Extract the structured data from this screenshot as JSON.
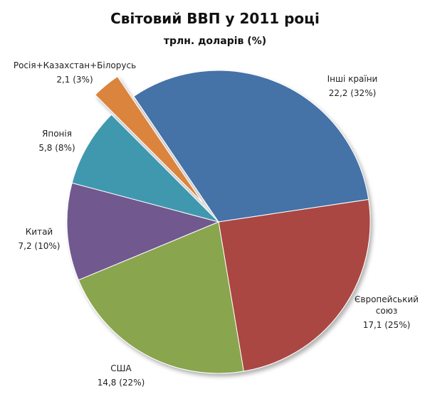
{
  "chart_data": {
    "type": "pie",
    "title": "Світовий ВВП у 2011 році",
    "subtitle": "трлн. доларів (%)",
    "categories": [
      "Інші країни",
      "Європейський союз",
      "США",
      "Китай",
      "Японія",
      "Росія+Казахстан+Білорусь"
    ],
    "values": [
      22.2,
      17.1,
      14.8,
      7.2,
      5.8,
      2.1
    ],
    "value_labels": [
      "22,2 (32%)",
      "17,1 (25%)",
      "14,8 (22%)",
      "7,2 (10%)",
      "5,8 (8%)",
      "2,1 (3%)"
    ],
    "colors": [
      "#4572a7",
      "#aa4643",
      "#89a54e",
      "#71588f",
      "#4198af",
      "#db843d"
    ],
    "exploded": [
      false,
      false,
      false,
      false,
      false,
      true
    ]
  }
}
